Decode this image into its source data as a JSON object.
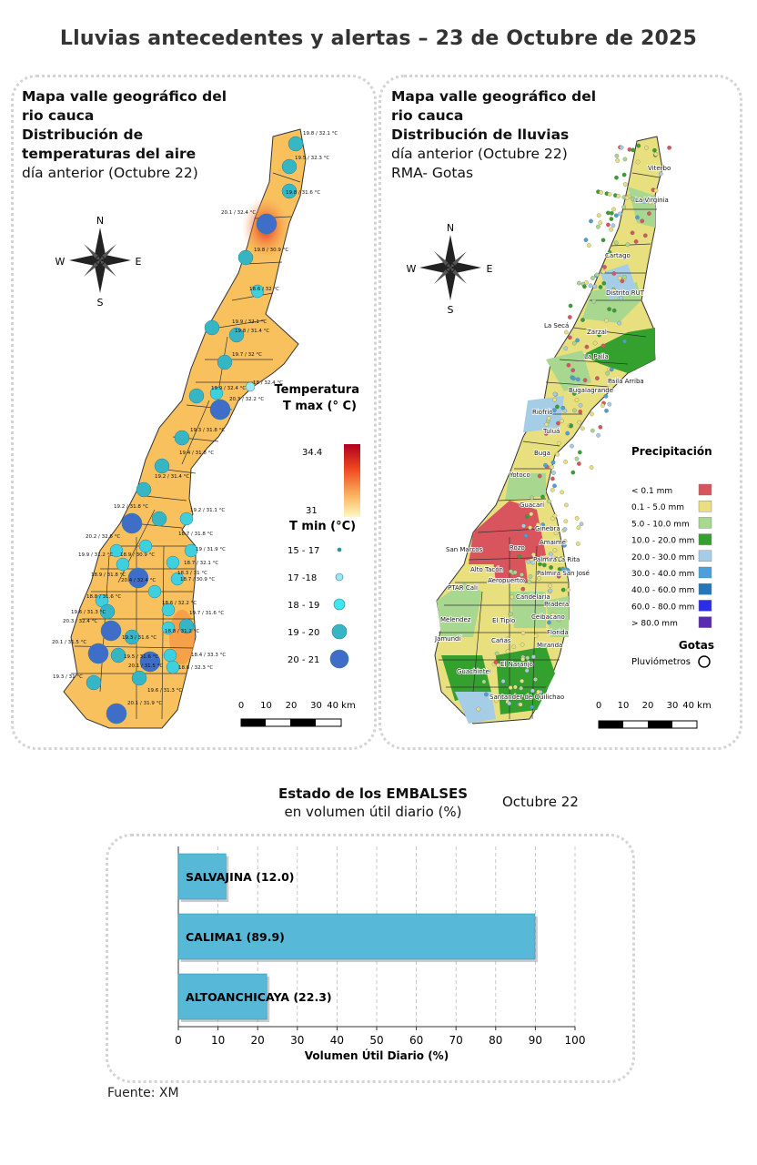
{
  "title": "Lluvias antecedentes y alertas – 23 de Octubre de 2025",
  "left_map": {
    "heading": [
      "Mapa valle geográfico del",
      "rio cauca",
      "Distribución de",
      "temperaturas del aire",
      "día anterior (Octubre 22)"
    ],
    "legend_title_1": "Temperatura",
    "legend_title_2": "T max (° C)",
    "scale_max": "34.4",
    "scale_min": "31",
    "tmin_title": "T min (°C)",
    "tmin_classes": [
      "15 - 17",
      "17 -18",
      "18 - 19",
      "19 - 20",
      "20 - 21"
    ],
    "station_labels": [
      "19.8 / 32.1 °C",
      "19.5 / 32.3 °C",
      "19.8 / 31.6 °C",
      "20.1 / 32.4 °C",
      "19.8 / 30.9 °C",
      "18.6 / 32 °C",
      "19.9 / 32.1 °C",
      "19.8 / 31.4 °C",
      "19.7 / 32 °C",
      "18 / 32.4 °C",
      "19.9 / 32.4 °C",
      "20.3 / 32.2 °C",
      "19.3 / 31.8 °C",
      "19.4 / 31.8 °C",
      "19.2 / 31.4 °C",
      "19.2 / 31.8 °C",
      "19.2 / 31.1 °C",
      "20.2 / 32.6 °C",
      "18.7 / 31.8 °C",
      "19.9 / 31.2 °C",
      "18.9 / 30.9 °C",
      "19 / 31.9 °C",
      "18.7 / 32.1 °C",
      "18.9 / 31.8 °C",
      "20.4 / 32.4 °C",
      "18.3 / 31 °C",
      "18.7 / 30.9 °C",
      "18.8 / 31.6 °C",
      "18.6 / 32.2 °C",
      "19.6 / 31.3 °C",
      "19.7 / 31.6 °C",
      "20.3 / 32.4 °C",
      "18.8 / 31.2 °C",
      "20.1 / 31.5 °C",
      "19.3 / 31.6 °C",
      "19.5 / 31.6 °C",
      "20.1 / 31.5 °C",
      "18.4 / 33.3 °C",
      "18.8 / 32.3 °C",
      "19.3 / 31 °C",
      "19.6 / 31.3 °C",
      "20.1 / 31.9 °C"
    ],
    "scale_labels": [
      "0",
      "10",
      "20",
      "30",
      "40 km"
    ]
  },
  "right_map": {
    "heading_1": [
      "Mapa valle geográfico del",
      "rio cauca"
    ],
    "heading_bold": "Distribución de lluvias",
    "heading_2": [
      "día anterior (Octubre 22)",
      "RMA- Gotas"
    ],
    "towns": [
      "Viterbo",
      "La Virginia",
      "Cartago",
      "Distrito RUT",
      "La Secá",
      "Zarzal",
      "La Paila",
      "Paila Arriba",
      "Bugalagrande",
      "Riofrío",
      "Tuluá",
      "Buga",
      "Yotoco",
      "Guacarí",
      "Ginebra",
      "Amaime",
      "San Marcos",
      "Rozo",
      "Palmira",
      "La Rita",
      "Aeropuerto",
      "Alto Tacón",
      "Palmira San José",
      "Aeropuerto",
      "PTAR Cali",
      "Candelaria",
      "Pradera",
      "Melendez",
      "El Tiplo",
      "Ceibacano",
      "Florida",
      "Jamundí",
      "Cañas",
      "Miranda",
      "El Naranjo",
      "Guachinte",
      "Santander de Quilichao"
    ],
    "legend_title": "Precipitación",
    "classes": [
      {
        "label": "< 0.1 mm",
        "color": "#d9555d"
      },
      {
        "label": "0.1 - 5.0 mm",
        "color": "#e8e07e"
      },
      {
        "label": "5.0 - 10.0 mm",
        "color": "#a8d890"
      },
      {
        "label": "10.0 - 20.0 mm",
        "color": "#34a12e"
      },
      {
        "label": "20.0 - 30.0 mm",
        "color": "#a6cde6"
      },
      {
        "label": "30.0 - 40.0 mm",
        "color": "#4aa0d8"
      },
      {
        "label": "40.0 - 60.0 mm",
        "color": "#2677b7"
      },
      {
        "label": "60.0 - 80.0 mm",
        "color": "#2b2ee6"
      },
      {
        "label": "> 80.0 mm",
        "color": "#5a2bb0"
      }
    ],
    "drops_title": "Gotas",
    "drops_label": "Pluviómetros",
    "scale_labels": [
      "0",
      "10",
      "20",
      "30",
      "40 km"
    ]
  },
  "compass": {
    "n": "N",
    "s": "S",
    "e": "E",
    "w": "W"
  },
  "chart_heading_1": "Estado de los EMBALSES",
  "chart_heading_2": "en volumen útil diario (%)",
  "chart_date": "Octubre 22",
  "chart_data": {
    "type": "bar",
    "orientation": "horizontal",
    "categories": [
      "SALVAJINA",
      "CALIMA1",
      "ALTOANCHICAYA"
    ],
    "values": [
      12.0,
      89.9,
      22.3
    ],
    "data_labels": [
      "SALVAJINA (12.0)",
      "CALIMA1 (89.9)",
      "ALTOANCHICAYA (22.3)"
    ],
    "xlabel": "Volumen Útil Diario (%)",
    "xlim": [
      0,
      100
    ],
    "xticks": [
      "0",
      "10",
      "20",
      "30",
      "40",
      "50",
      "60",
      "70",
      "80",
      "90",
      "100"
    ],
    "grid": true,
    "bar_color": "#57b8d8"
  },
  "source": "Fuente: XM"
}
